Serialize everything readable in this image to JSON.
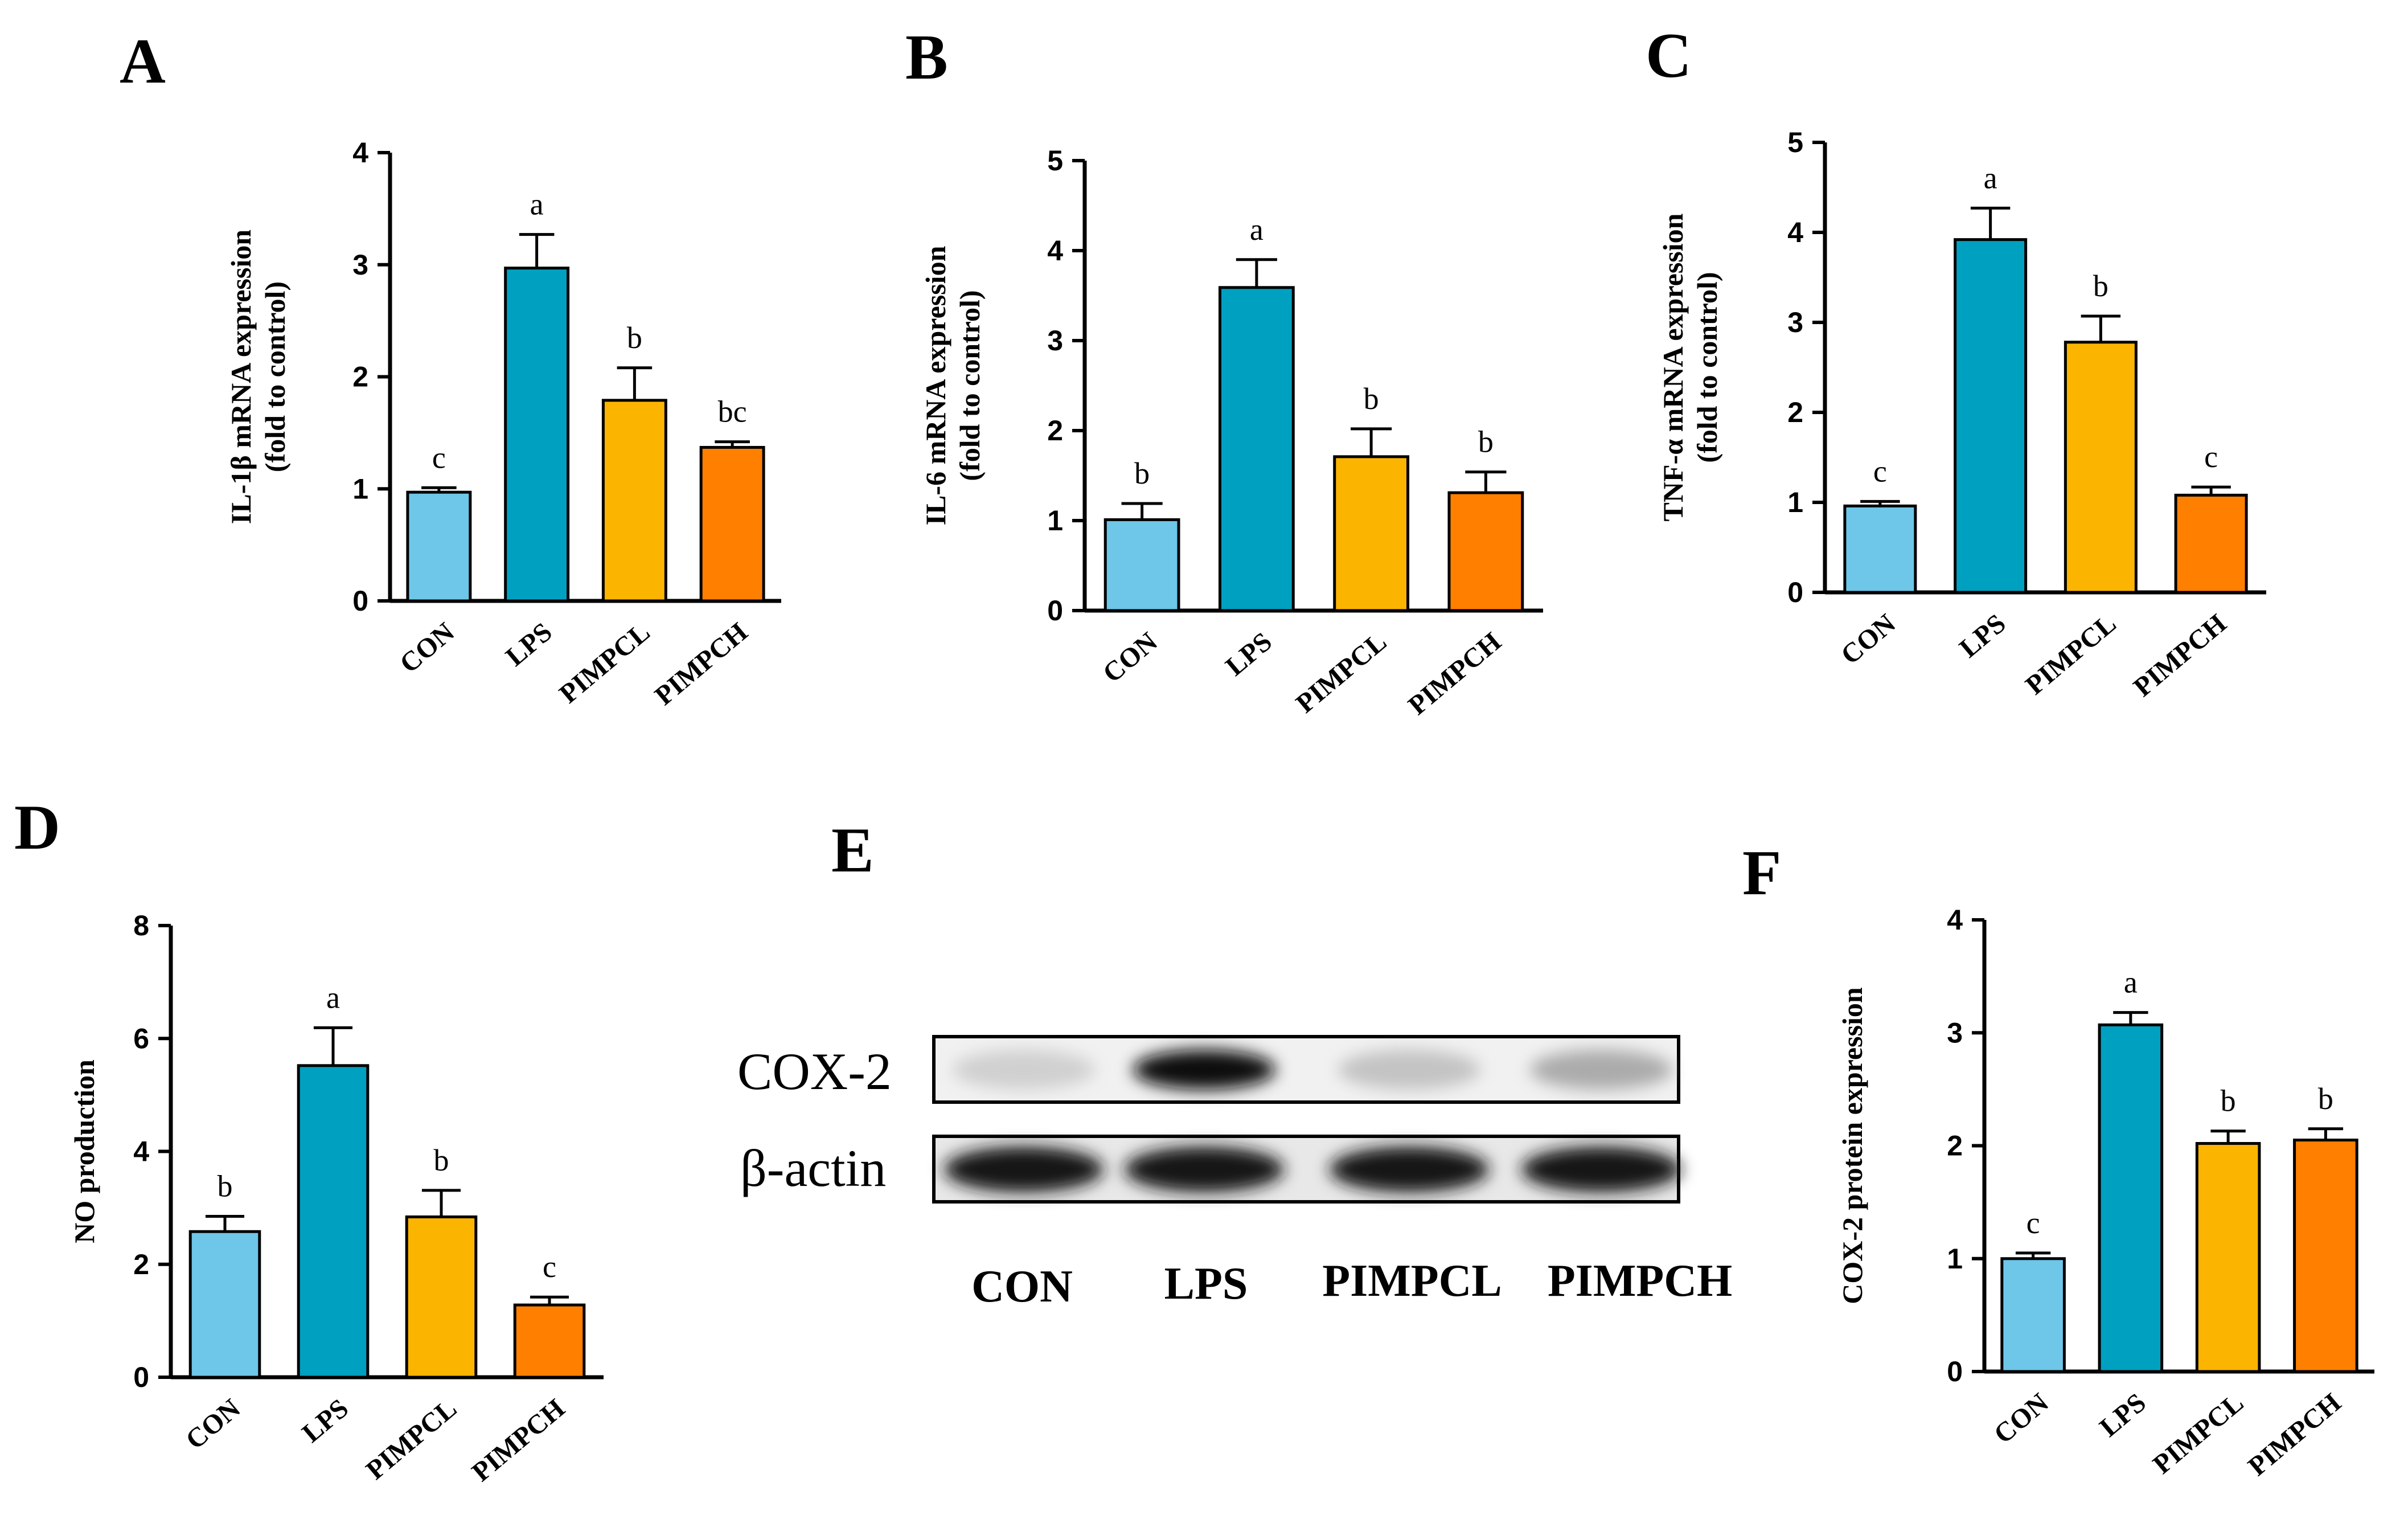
{
  "colors": {
    "CON": "#6ec6e8",
    "LPS": "#00a0c1",
    "PIMPCL": "#fbb400",
    "PIMPCH": "#ff7f00",
    "axis": "#000000"
  },
  "chart_data": [
    {
      "type": "bar",
      "panel": "A",
      "ylabel_line1": "IL-1β mRNA expression",
      "ylabel_line2": "(fold to control)",
      "categories": [
        "CON",
        "LPS",
        "PIMPCL",
        "PIMPCH"
      ],
      "values": [
        0.97,
        2.97,
        1.79,
        1.37
      ],
      "errors": [
        0.04,
        0.3,
        0.29,
        0.05
      ],
      "letters": [
        "c",
        "a",
        "b",
        "bc"
      ],
      "ylim": [
        0,
        4
      ],
      "yticks": [
        "0",
        "1",
        "2",
        "3",
        "4"
      ]
    },
    {
      "type": "bar",
      "panel": "B",
      "ylabel_line1": "IL-6 mRNA expression",
      "ylabel_line2": "(fold to control)",
      "categories": [
        "CON",
        "LPS",
        "PIMPCL",
        "PIMPCH"
      ],
      "values": [
        1.01,
        3.59,
        1.71,
        1.31
      ],
      "errors": [
        0.18,
        0.31,
        0.31,
        0.23
      ],
      "letters": [
        "b",
        "a",
        "b",
        "b"
      ],
      "ylim": [
        0,
        5
      ],
      "yticks": [
        "0",
        "1",
        "2",
        "3",
        "4",
        "5"
      ]
    },
    {
      "type": "bar",
      "panel": "C",
      "ylabel_line1": "TNF-α mRNA expression",
      "ylabel_line2": "(fold to control)",
      "categories": [
        "CON",
        "LPS",
        "PIMPCL",
        "PIMPCH"
      ],
      "values": [
        0.96,
        3.92,
        2.78,
        1.08
      ],
      "errors": [
        0.05,
        0.35,
        0.29,
        0.09
      ],
      "letters": [
        "c",
        "a",
        "b",
        "c"
      ],
      "ylim": [
        0,
        5
      ],
      "yticks": [
        "0",
        "1",
        "2",
        "3",
        "4",
        "5"
      ]
    },
    {
      "type": "bar",
      "panel": "D",
      "ylabel_line1": "NO production",
      "ylabel_line2": "",
      "categories": [
        "CON",
        "LPS",
        "PIMPCL",
        "PIMPCH"
      ],
      "values": [
        2.58,
        5.52,
        2.84,
        1.28
      ],
      "errors": [
        0.27,
        0.67,
        0.47,
        0.14
      ],
      "letters": [
        "b",
        "a",
        "b",
        "c"
      ],
      "ylim": [
        0,
        8
      ],
      "yticks": [
        "0",
        "2",
        "4",
        "6",
        "8"
      ]
    },
    {
      "type": "bar",
      "panel": "F",
      "ylabel_line1": "COX-2 protein expression",
      "ylabel_line2": "",
      "categories": [
        "CON",
        "LPS",
        "PIMPCL",
        "PIMPCH"
      ],
      "values": [
        1.0,
        3.07,
        2.02,
        2.05
      ],
      "errors": [
        0.05,
        0.11,
        0.11,
        0.1
      ],
      "letters": [
        "c",
        "a",
        "b",
        "b"
      ],
      "ylim": [
        0,
        4
      ],
      "yticks": [
        "0",
        "1",
        "2",
        "3",
        "4"
      ]
    }
  ],
  "blot": {
    "panel": "E",
    "rows": [
      "COX-2",
      "β-actin"
    ],
    "lanes": [
      "CON",
      "LPS",
      "PIMPCL",
      "PIMPCH"
    ],
    "cox2_intensity": [
      0.22,
      0.95,
      0.28,
      0.38
    ],
    "actin_intensity": [
      0.92,
      0.92,
      0.9,
      0.9
    ]
  }
}
